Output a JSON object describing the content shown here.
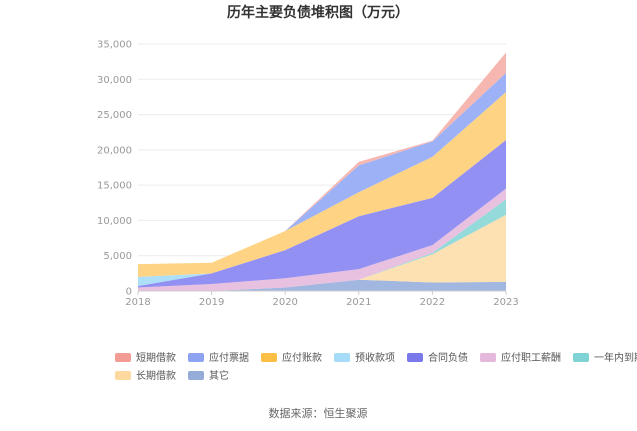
{
  "chart_data": {
    "type": "area",
    "stacked": true,
    "title": "历年主要负债堆积图（万元）",
    "xlabel": "",
    "ylabel": "",
    "x": [
      "2018",
      "2019",
      "2020",
      "2021",
      "2022",
      "2023"
    ],
    "ylim": [
      0,
      35000
    ],
    "yticks": [
      "0",
      "5,000",
      "10,000",
      "15,000",
      "20,000",
      "25,000",
      "30,000",
      "35,000"
    ],
    "grid": true,
    "legend_position": "bottom",
    "series": [
      {
        "name": "其它",
        "color": "#9db3dd",
        "values": [
          0,
          0,
          500,
          1600,
          1200,
          1300
        ]
      },
      {
        "name": "长期借款",
        "color": "#fddfae",
        "values": [
          0,
          0,
          0,
          0,
          4000,
          9500
        ]
      },
      {
        "name": "一年内到期的非流动负债",
        "color": "#8ed8d9",
        "values": [
          0,
          0,
          0,
          0,
          200,
          2200
        ]
      },
      {
        "name": "应付职工薪酬",
        "color": "#e8bede",
        "values": [
          500,
          1000,
          1300,
          1500,
          1100,
          1500
        ]
      },
      {
        "name": "合同负债",
        "color": "#8c8bf2",
        "values": [
          200,
          1500,
          4000,
          7500,
          6700,
          6900
        ]
      },
      {
        "name": "预收款项",
        "color": "#a9def8",
        "values": [
          1300,
          0,
          0,
          0,
          0,
          0
        ]
      },
      {
        "name": "应付账款",
        "color": "#fed27d",
        "values": [
          1800,
          1500,
          2700,
          3400,
          5800,
          6800
        ]
      },
      {
        "name": "应付票据",
        "color": "#98aef6",
        "values": [
          0,
          0,
          0,
          3800,
          2200,
          2700
        ]
      },
      {
        "name": "短期借款",
        "color": "#f7b3ad",
        "values": [
          0,
          0,
          0,
          500,
          100,
          2900
        ]
      }
    ],
    "legend": [
      {
        "name": "短期借款",
        "color": "#f29c95"
      },
      {
        "name": "应付票据",
        "color": "#8ea4f2"
      },
      {
        "name": "应付账款",
        "color": "#fbbf45"
      },
      {
        "name": "预收款项",
        "color": "#a6dcf7"
      },
      {
        "name": "合同负债",
        "color": "#7a79ec"
      },
      {
        "name": "应付职工薪酬",
        "color": "#e6b8dc"
      },
      {
        "name": "一年内到期的非流动负债",
        "color": "#7fd3d4"
      },
      {
        "name": "长期借款",
        "color": "#fdd9a0"
      },
      {
        "name": "其它",
        "color": "#95acd8"
      }
    ],
    "source": "数据来源：恒生聚源"
  }
}
